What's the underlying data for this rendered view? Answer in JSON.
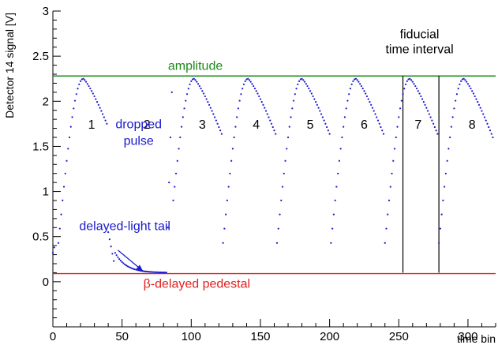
{
  "chart_data": {
    "type": "scatter",
    "title": "",
    "xlabel": "time bin",
    "ylabel": "Detector 14 signal [V]",
    "xlim": [
      0,
      320
    ],
    "ylim": [
      -0.5,
      3
    ],
    "x_ticks": [
      0,
      50,
      100,
      150,
      200,
      250,
      300
    ],
    "x_tick_labels": [
      "0",
      "50",
      "100",
      "150",
      "200",
      "250",
      "300"
    ],
    "y_ticks": [
      0,
      0.5,
      1,
      1.5,
      2,
      2.5,
      3
    ],
    "y_tick_labels": [
      "0",
      "0.5",
      "1",
      "1.5",
      "2",
      "2.5",
      "3"
    ],
    "colors": {
      "points": "#1a1acc",
      "amplitude": "#1a8a1a",
      "pedestal": "#e02020",
      "axis": "#000000"
    },
    "reference_lines": {
      "amplitude": {
        "y": 2.28,
        "label": "amplitude"
      },
      "pedestal": {
        "y": 0.09,
        "label": "β-delayed pedestal"
      }
    },
    "fiducial_interval": {
      "x_start": 253,
      "x_end": 279,
      "label_line1": "fiducial",
      "label_line2": "time interval"
    },
    "pulses": [
      {
        "label": "1",
        "peak_x": 22
      },
      {
        "label": "2",
        "peak_x": 62,
        "dropped": true
      },
      {
        "label": "3",
        "peak_x": 102
      },
      {
        "label": "4",
        "peak_x": 141
      },
      {
        "label": "5",
        "peak_x": 180
      },
      {
        "label": "6",
        "peak_x": 219
      },
      {
        "label": "7",
        "peak_x": 258
      },
      {
        "label": "8",
        "peak_x": 297
      }
    ],
    "annotations": {
      "dropped_line1": "dropped",
      "dropped_line2": "pulse",
      "delayed_tail": "delayed-light tail"
    },
    "grid": false
  }
}
